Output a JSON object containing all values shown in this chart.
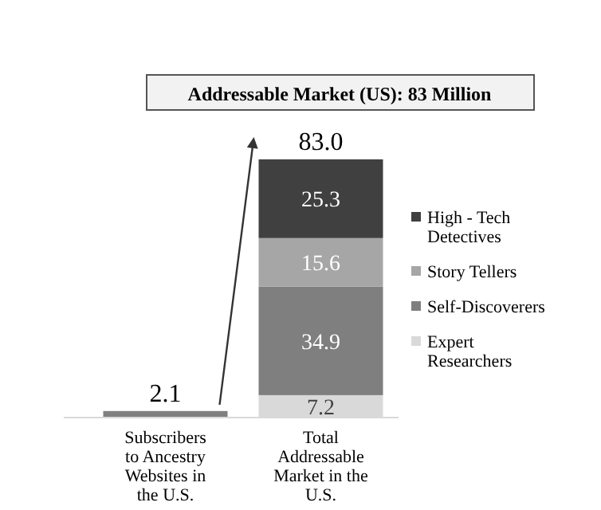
{
  "chart_data": {
    "type": "bar",
    "title": "Addressable Market (US): 83 Million",
    "categories": [
      "Subscribers to Ancestry Websites in the U.S.",
      "Total Addressable Market in the U.S."
    ],
    "stacked": true,
    "legend": "right",
    "tick_labels": "x",
    "totals": [
      "2.1",
      "83.0"
    ],
    "series": [
      {
        "color": "#808080",
        "values": [
          2.1,
          null
        ]
      },
      {
        "name": "Expert Researchers",
        "color": "#d9d9d9",
        "values": [
          null,
          7.2
        ],
        "value_labels": [
          null,
          "7.2"
        ]
      },
      {
        "name": "Self-Discoverers",
        "color": "#7f7f7f",
        "values": [
          null,
          34.9
        ],
        "value_labels": [
          null,
          "34.9"
        ]
      },
      {
        "name": "Story Tellers",
        "color": "#a6a6a6",
        "values": [
          null,
          15.6
        ],
        "value_labels": [
          null,
          "15.6"
        ]
      },
      {
        "name": "High - Tech Detectives",
        "color": "#404040",
        "values": [
          null,
          25.3
        ],
        "value_labels": [
          null,
          "25.3"
        ]
      }
    ]
  }
}
